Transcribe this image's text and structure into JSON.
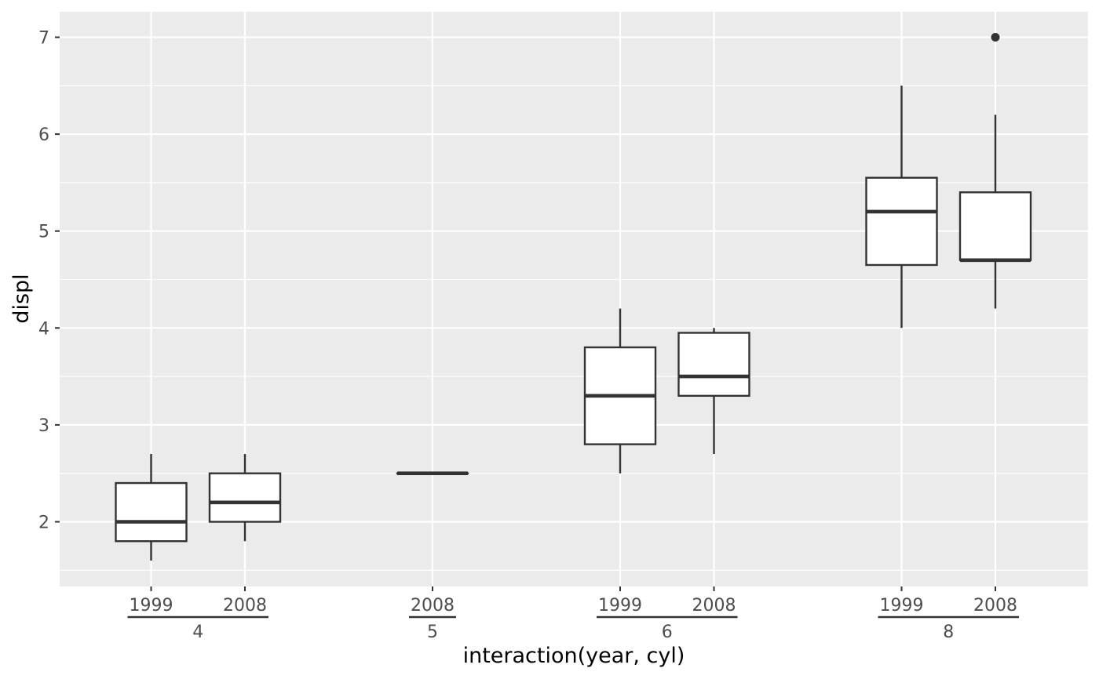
{
  "chart_data": {
    "type": "boxplot",
    "xlabel": "interaction(year, cyl)",
    "ylabel": "displ",
    "ylim": [
      1.42,
      7.28
    ],
    "yticks": [
      2,
      3,
      4,
      5,
      6,
      7
    ],
    "grid": true,
    "colors": {
      "panel_background": "#ebebeb",
      "grid": "#ffffff",
      "box_fill": "#ffffff",
      "box_line": "#333333",
      "tick_text": "#4d4d4d"
    },
    "categories": [
      {
        "year": "1999",
        "cyl": "4",
        "group_index": 0,
        "slot": 1,
        "min": 1.6,
        "q1": 1.8,
        "median": 2.0,
        "q3": 2.4,
        "max": 2.7,
        "outliers": []
      },
      {
        "year": "2008",
        "cyl": "4",
        "group_index": 0,
        "slot": 2,
        "min": 1.8,
        "q1": 2.0,
        "median": 2.2,
        "q3": 2.5,
        "max": 2.7,
        "outliers": []
      },
      {
        "year": "2008",
        "cyl": "5",
        "group_index": 1,
        "slot": 4,
        "min": 2.5,
        "q1": 2.5,
        "median": 2.5,
        "q3": 2.5,
        "max": 2.5,
        "outliers": []
      },
      {
        "year": "1999",
        "cyl": "6",
        "group_index": 2,
        "slot": 6,
        "min": 2.5,
        "q1": 2.8,
        "median": 3.3,
        "q3": 3.8,
        "max": 4.2,
        "outliers": []
      },
      {
        "year": "2008",
        "cyl": "6",
        "group_index": 2,
        "slot": 7,
        "min": 2.7,
        "q1": 3.3,
        "median": 3.5,
        "q3": 3.95,
        "max": 4.0,
        "outliers": []
      },
      {
        "year": "1999",
        "cyl": "8",
        "group_index": 3,
        "slot": 9,
        "min": 4.0,
        "q1": 4.65,
        "median": 5.2,
        "q3": 5.55,
        "max": 6.5,
        "outliers": []
      },
      {
        "year": "2008",
        "cyl": "8",
        "group_index": 3,
        "slot": 10,
        "min": 4.2,
        "q1": 4.7,
        "median": 4.7,
        "q3": 5.4,
        "max": 6.2,
        "outliers": [
          7.0
        ]
      }
    ],
    "groups": [
      "4",
      "5",
      "6",
      "8"
    ]
  }
}
